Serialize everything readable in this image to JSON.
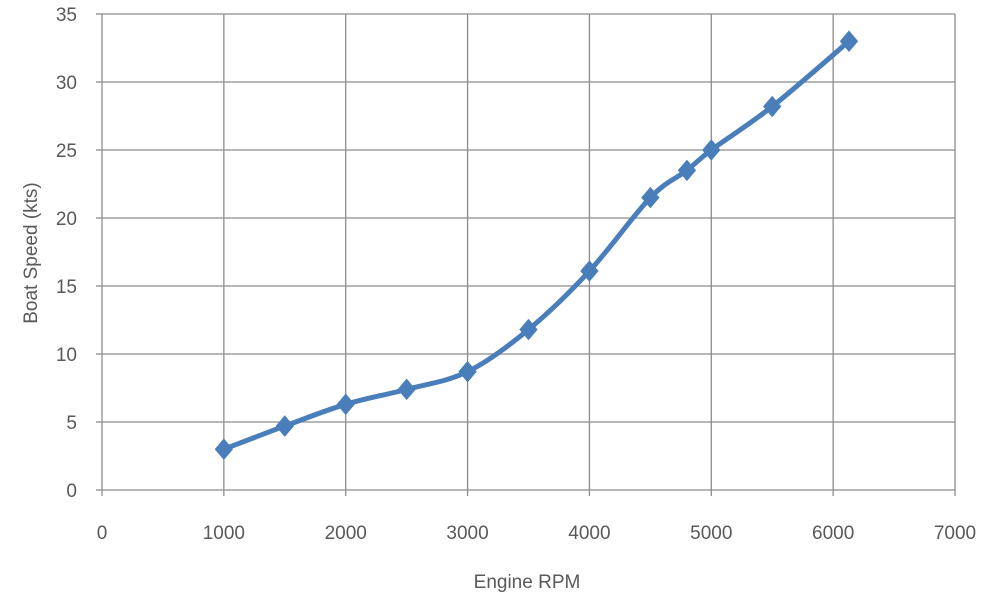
{
  "chart_data": {
    "type": "scatter",
    "title": "",
    "xlabel": "Engine RPM",
    "ylabel": "Boat Speed  (kts)",
    "xlim": [
      0,
      7000
    ],
    "ylim": [
      0,
      35
    ],
    "xticks": [
      0,
      1000,
      2000,
      3000,
      4000,
      5000,
      6000,
      7000
    ],
    "yticks": [
      0,
      5,
      10,
      15,
      20,
      25,
      30,
      35
    ],
    "grid": true,
    "smooth_line": true,
    "marker": "diamond",
    "line_color": "#4a7ebb",
    "series": [
      {
        "x": [
          1000,
          1500,
          2000,
          2500,
          3000,
          3500,
          4000,
          4500,
          4800,
          5000,
          5500,
          6130
        ],
        "y": [
          3.0,
          4.7,
          6.3,
          7.4,
          8.7,
          11.8,
          16.1,
          21.5,
          23.5,
          25.0,
          28.2,
          33.0
        ]
      }
    ]
  }
}
